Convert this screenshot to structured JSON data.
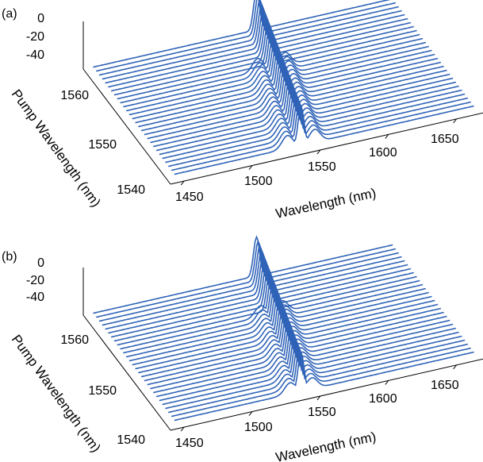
{
  "colors": {
    "trace": "#2f63b8",
    "axis": "#000000",
    "background": "#ffffff"
  },
  "chart_data": [
    {
      "type": "line",
      "panel_label": "(a)",
      "xlabel": "Wavelength (nm)",
      "ylabel": "Pump Wavelength (nm)",
      "zlabel": "",
      "x_ticks": [
        "1450",
        "1500",
        "1550",
        "1600",
        "1650"
      ],
      "y_ticks": [
        "1540",
        "1550",
        "1560"
      ],
      "z_ticks": [
        "0",
        "-20",
        "-40"
      ],
      "xlim": [
        1440,
        1670
      ],
      "ylim": [
        1537,
        1566
      ],
      "zlim": [
        -50,
        5
      ],
      "grid": false,
      "series_wavelengths_pump": [
        1538,
        1539,
        1540,
        1541,
        1542,
        1543,
        1544,
        1545,
        1546,
        1547,
        1548,
        1549,
        1550,
        1551,
        1552,
        1553,
        1554,
        1555,
        1556,
        1557,
        1558,
        1559,
        1560,
        1561,
        1562,
        1563,
        1564,
        1565
      ],
      "pump_peak_level_dB": 0,
      "baseline_level_dB": -45,
      "sideband_level_dB": -30,
      "sideband_visible_below_pump_nm": 1557,
      "sideband_peak_offset_nm": 10,
      "baseline_tilt_dB": 3
    },
    {
      "type": "line",
      "panel_label": "(b)",
      "xlabel": "Wavelength (nm)",
      "ylabel": "Pump Wavelength (nm)",
      "zlabel": "",
      "x_ticks": [
        "1450",
        "1500",
        "1550",
        "1600",
        "1650"
      ],
      "y_ticks": [
        "1540",
        "1550",
        "1560"
      ],
      "z_ticks": [
        "0",
        "-20",
        "-40"
      ],
      "xlim": [
        1440,
        1670
      ],
      "ylim": [
        1537,
        1566
      ],
      "zlim": [
        -50,
        5
      ],
      "grid": false,
      "series_wavelengths_pump": [
        1538,
        1539,
        1540,
        1541,
        1542,
        1543,
        1544,
        1545,
        1546,
        1547,
        1548,
        1549,
        1550,
        1551,
        1552,
        1553,
        1554,
        1555,
        1556,
        1557,
        1558,
        1559,
        1560,
        1561,
        1562,
        1563,
        1564,
        1565
      ],
      "pump_peak_level_dB": 0,
      "baseline_level_dB": -45,
      "sideband_level_dB": -32,
      "sideband_visible_below_pump_nm": 1557,
      "sideband_peak_offset_nm": 8,
      "baseline_tilt_dB": 3
    }
  ]
}
